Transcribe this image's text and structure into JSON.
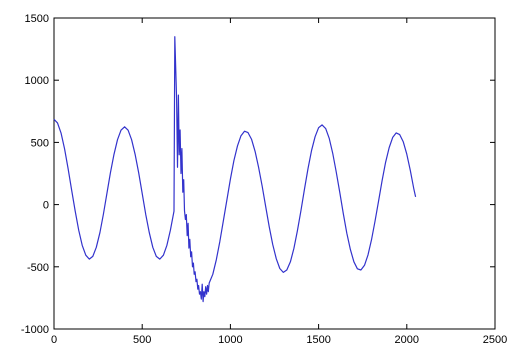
{
  "chart_data": {
    "type": "line",
    "title": "",
    "xlabel": "",
    "ylabel": "",
    "xlim": [
      0,
      2500
    ],
    "ylim": [
      -1000,
      1500
    ],
    "xticks": [
      0,
      500,
      1000,
      1500,
      2000,
      2500
    ],
    "yticks": [
      -1000,
      -500,
      0,
      500,
      1000,
      1500
    ],
    "xtick_labels": [
      "0",
      "500",
      "1000",
      "1500",
      "2000",
      "2500"
    ],
    "ytick_labels": [
      "-1000",
      "-500",
      "0",
      "500",
      "1000",
      "1500"
    ],
    "grid": false,
    "line_color": "#3333cc",
    "series": [
      {
        "x": [
          0,
          20,
          40,
          60,
          80,
          100,
          120,
          140,
          160,
          180,
          200,
          220,
          240,
          260,
          280,
          300,
          320,
          340,
          360,
          380,
          400,
          420,
          440,
          460,
          480,
          500,
          520,
          540,
          560,
          580,
          600,
          620,
          640,
          660,
          680,
          685,
          690,
          695,
          700,
          705,
          710,
          715,
          720,
          725,
          730,
          735,
          740,
          745,
          750,
          755,
          760,
          765,
          770,
          775,
          780,
          785,
          790,
          795,
          800,
          805,
          810,
          815,
          820,
          825,
          830,
          835,
          840,
          845,
          850,
          855,
          860,
          865,
          870,
          875,
          880,
          900,
          920,
          940,
          960,
          980,
          1000,
          1020,
          1040,
          1060,
          1080,
          1100,
          1120,
          1140,
          1160,
          1180,
          1200,
          1220,
          1240,
          1260,
          1280,
          1300,
          1320,
          1340,
          1360,
          1380,
          1400,
          1420,
          1440,
          1460,
          1480,
          1500,
          1520,
          1540,
          1560,
          1580,
          1600,
          1620,
          1640,
          1660,
          1680,
          1700,
          1720,
          1740,
          1760,
          1780,
          1800,
          1820,
          1840,
          1860,
          1880,
          1900,
          1920,
          1940,
          1960,
          1980,
          2000,
          2020,
          2040,
          2050
        ],
        "y": [
          686,
          657,
          574,
          447,
          289,
          118,
          -52,
          -205,
          -327,
          -407,
          -438,
          -416,
          -343,
          -226,
          -77,
          89,
          255,
          404,
          522,
          598,
          625,
          598,
          522,
          404,
          255,
          89,
          -77,
          -226,
          -343,
          -416,
          -438,
          -407,
          -327,
          -205,
          -52,
          1350,
          1100,
          850,
          300,
          880,
          400,
          600,
          250,
          450,
          100,
          200,
          -50,
          -120,
          -80,
          -250,
          -150,
          -350,
          -280,
          -420,
          -380,
          -500,
          -470,
          -560,
          -540,
          -620,
          -600,
          -680,
          -650,
          -720,
          -700,
          -760,
          -640,
          -780,
          -700,
          -740,
          -660,
          -720,
          -650,
          -700,
          -630,
          -560,
          -444,
          -298,
          -133,
          38,
          205,
          354,
          473,
          554,
          590,
          579,
          524,
          428,
          299,
          147,
          -16,
          -177,
          -320,
          -436,
          -514,
          -545,
          -526,
          -460,
          -352,
          -210,
          -46,
          125,
          289,
          433,
          546,
          618,
          641,
          611,
          533,
          413,
          264,
          97,
          -72,
          -229,
          -362,
          -460,
          -516,
          -526,
          -488,
          -404,
          -283,
          -134,
          30,
          193,
          340,
          459,
          540,
          576,
          563,
          504,
          405,
          275,
          123,
          62
        ]
      }
    ]
  }
}
